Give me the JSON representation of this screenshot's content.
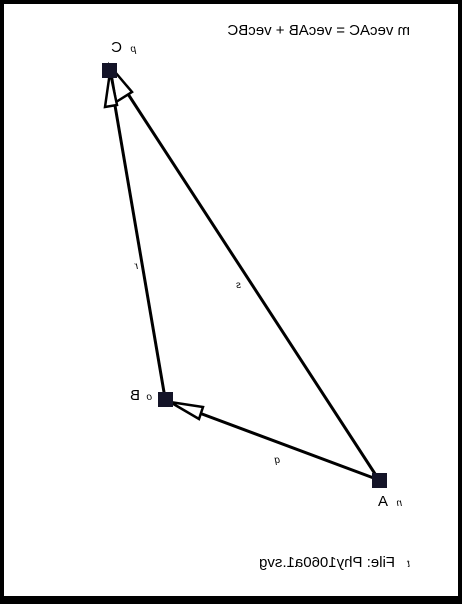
{
  "equation": "m vecAC = vecAB + vecBC",
  "points": {
    "A": {
      "label": "A",
      "tag": "n"
    },
    "B": {
      "label": "B",
      "tag": "o"
    },
    "C": {
      "label": "C",
      "tag": "p"
    }
  },
  "vectors": {
    "AB": {
      "label": "q"
    },
    "BC": {
      "label": "r"
    },
    "AC": {
      "label": "s"
    }
  },
  "footer": {
    "tag": "t",
    "file": "File: Phy1060a1.svg"
  },
  "colors": {
    "point_fill": "#141428",
    "stroke": "#000000",
    "background": "#ffffff",
    "border": "#000000"
  }
}
